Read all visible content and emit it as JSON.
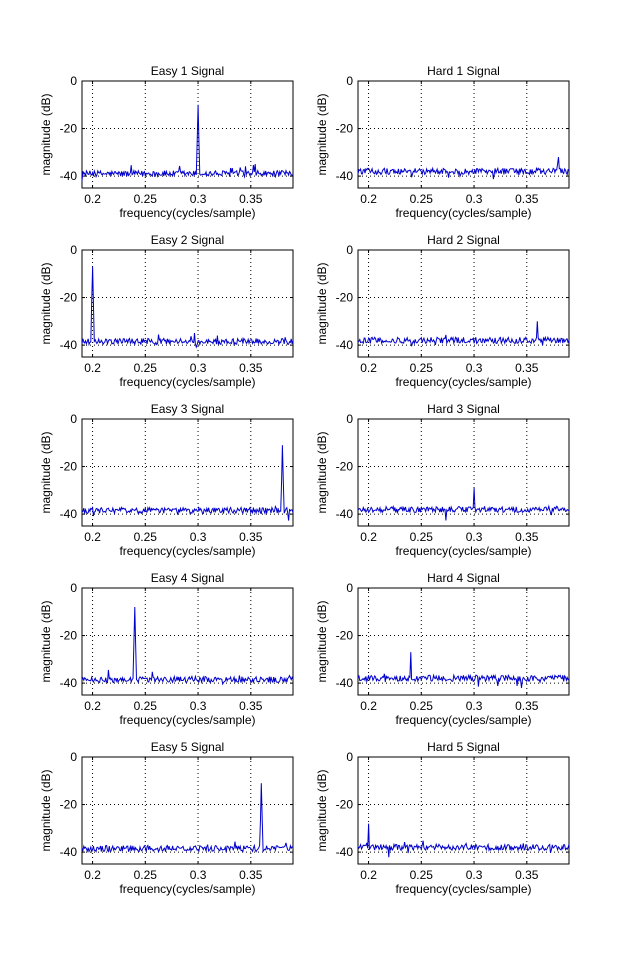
{
  "figure": {
    "background": "#ffffff"
  },
  "style": {
    "line_color": "#0000cc",
    "axis_color": "#000000",
    "grid_color": "#000000"
  },
  "chart_data": [
    {
      "type": "line",
      "title": "Easy 1 Signal",
      "xlabel": "frequency(cycles/sample)",
      "ylabel": "magnitude (dB)",
      "xlim": [
        0.19,
        0.39
      ],
      "ylim": [
        -45,
        0
      ],
      "xticks": [
        "0.2",
        "0.25",
        "0.3",
        "0.35"
      ],
      "yticks": [
        "0",
        "-20",
        "-40"
      ],
      "grid": true,
      "noise_floor_db": -39,
      "peaks": [
        {
          "x": 0.3,
          "y": -10
        }
      ]
    },
    {
      "type": "line",
      "title": "Hard 1 Signal",
      "xlabel": "frequency(cycles/sample)",
      "ylabel": "magnitude (dB)",
      "xlim": [
        0.19,
        0.39
      ],
      "ylim": [
        -45,
        0
      ],
      "xticks": [
        "0.2",
        "0.25",
        "0.3",
        "0.35"
      ],
      "yticks": [
        "0",
        "-20",
        "-40"
      ],
      "grid": true,
      "noise_floor_db": -38,
      "peaks": [
        {
          "x": 0.38,
          "y": -32
        }
      ]
    },
    {
      "type": "line",
      "title": "Easy 2 Signal",
      "xlabel": "frequency(cycles/sample)",
      "ylabel": "magnitude (dB)",
      "xlim": [
        0.19,
        0.39
      ],
      "ylim": [
        -45,
        0
      ],
      "xticks": [
        "0.2",
        "0.25",
        "0.3",
        "0.35"
      ],
      "yticks": [
        "0",
        "-20",
        "-40"
      ],
      "grid": true,
      "noise_floor_db": -38.5,
      "peaks": [
        {
          "x": 0.2,
          "y": -7
        }
      ]
    },
    {
      "type": "line",
      "title": "Hard 2 Signal",
      "xlabel": "frequency(cycles/sample)",
      "ylabel": "magnitude (dB)",
      "xlim": [
        0.19,
        0.39
      ],
      "ylim": [
        -45,
        0
      ],
      "xticks": [
        "0.2",
        "0.25",
        "0.3",
        "0.35"
      ],
      "yticks": [
        "0",
        "-20",
        "-40"
      ],
      "grid": true,
      "noise_floor_db": -38,
      "peaks": [
        {
          "x": 0.36,
          "y": -30
        }
      ]
    },
    {
      "type": "line",
      "title": "Easy 3 Signal",
      "xlabel": "frequency(cycles/sample)",
      "ylabel": "magnitude (dB)",
      "xlim": [
        0.19,
        0.39
      ],
      "ylim": [
        -45,
        0
      ],
      "xticks": [
        "0.2",
        "0.25",
        "0.3",
        "0.35"
      ],
      "yticks": [
        "0",
        "-20",
        "-40"
      ],
      "grid": true,
      "noise_floor_db": -38.5,
      "peaks": [
        {
          "x": 0.38,
          "y": -11
        }
      ]
    },
    {
      "type": "line",
      "title": "Hard 3 Signal",
      "xlabel": "frequency(cycles/sample)",
      "ylabel": "magnitude (dB)",
      "xlim": [
        0.19,
        0.39
      ],
      "ylim": [
        -45,
        0
      ],
      "xticks": [
        "0.2",
        "0.25",
        "0.3",
        "0.35"
      ],
      "yticks": [
        "0",
        "-20",
        "-40"
      ],
      "grid": true,
      "noise_floor_db": -38,
      "peaks": [
        {
          "x": 0.3,
          "y": -29
        }
      ]
    },
    {
      "type": "line",
      "title": "Easy 4 Signal",
      "xlabel": "frequency(cycles/sample)",
      "ylabel": "magnitude (dB)",
      "xlim": [
        0.19,
        0.39
      ],
      "ylim": [
        -45,
        0
      ],
      "xticks": [
        "0.2",
        "0.25",
        "0.3",
        "0.35"
      ],
      "yticks": [
        "0",
        "-20",
        "-40"
      ],
      "grid": true,
      "noise_floor_db": -38.5,
      "peaks": [
        {
          "x": 0.24,
          "y": -8
        }
      ]
    },
    {
      "type": "line",
      "title": "Hard 4 Signal",
      "xlabel": "frequency(cycles/sample)",
      "ylabel": "magnitude (dB)",
      "xlim": [
        0.19,
        0.39
      ],
      "ylim": [
        -45,
        0
      ],
      "xticks": [
        "0.2",
        "0.25",
        "0.3",
        "0.35"
      ],
      "yticks": [
        "0",
        "-20",
        "-40"
      ],
      "grid": true,
      "noise_floor_db": -38,
      "peaks": [
        {
          "x": 0.24,
          "y": -27
        }
      ]
    },
    {
      "type": "line",
      "title": "Easy 5 Signal",
      "xlabel": "frequency(cycles/sample)",
      "ylabel": "magnitude (dB)",
      "xlim": [
        0.19,
        0.39
      ],
      "ylim": [
        -45,
        0
      ],
      "xticks": [
        "0.2",
        "0.25",
        "0.3",
        "0.35"
      ],
      "yticks": [
        "0",
        "-20",
        "-40"
      ],
      "grid": true,
      "noise_floor_db": -38.5,
      "peaks": [
        {
          "x": 0.36,
          "y": -11
        }
      ]
    },
    {
      "type": "line",
      "title": "Hard 5 Signal",
      "xlabel": "frequency(cycles/sample)",
      "ylabel": "magnitude (dB)",
      "xlim": [
        0.19,
        0.39
      ],
      "ylim": [
        -45,
        0
      ],
      "xticks": [
        "0.2",
        "0.25",
        "0.3",
        "0.35"
      ],
      "yticks": [
        "0",
        "-20",
        "-40"
      ],
      "grid": true,
      "noise_floor_db": -38,
      "peaks": [
        {
          "x": 0.2,
          "y": -28
        }
      ]
    }
  ]
}
